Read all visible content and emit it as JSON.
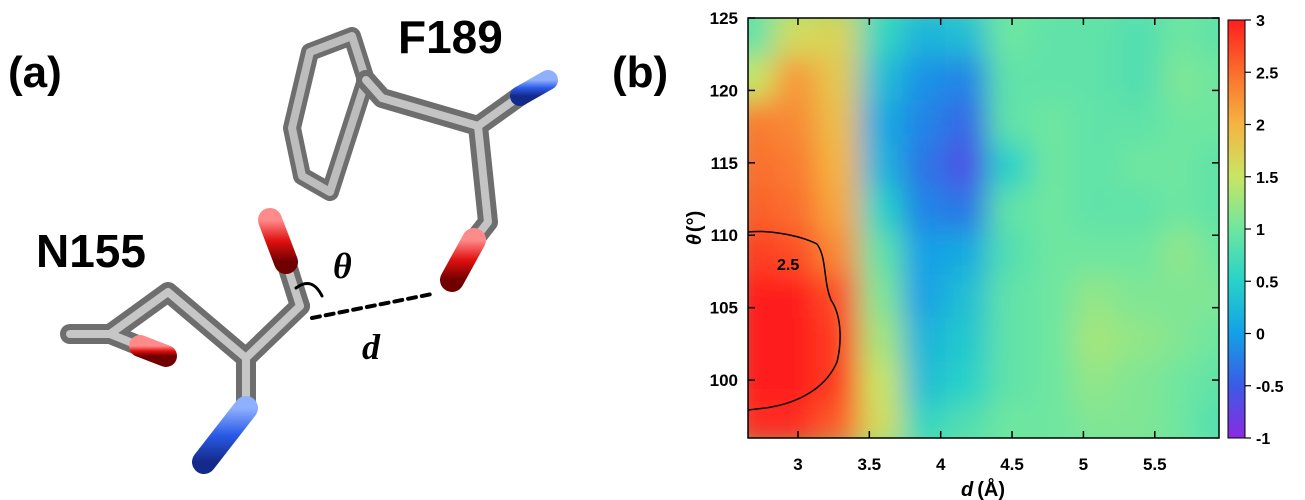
{
  "panel_a": {
    "label": "(a)",
    "residue_top": "F189",
    "residue_left": "N155",
    "angle_symbol": "θ",
    "distance_symbol": "d"
  },
  "panel_b": {
    "label": "(b)"
  },
  "chart_data": {
    "type": "heatmap",
    "xlabel_symbol": "d",
    "xlabel_unit": "(Å)",
    "ylabel_symbol": "θ",
    "ylabel_unit": "(°)",
    "xlim": [
      2.65,
      5.95
    ],
    "ylim": [
      96,
      125
    ],
    "x_ticks": [
      3,
      3.5,
      4,
      4.5,
      5,
      5.5
    ],
    "x_tick_labels": [
      "3",
      "3.5",
      "4",
      "4.5",
      "5",
      "5.5"
    ],
    "y_ticks": [
      100,
      105,
      110,
      115,
      120,
      125
    ],
    "y_tick_labels": [
      "100",
      "105",
      "110",
      "115",
      "120",
      "125"
    ],
    "colorbar": {
      "range": [
        -1,
        3
      ],
      "ticks": [
        -1,
        -0.5,
        0,
        0.5,
        1,
        1.5,
        2,
        2.5,
        3
      ],
      "tick_labels": [
        "-1",
        "-0.5",
        "0",
        "0.5",
        "1",
        "1.5",
        "2",
        "2.5",
        "3"
      ],
      "colors": [
        "#8a2be2",
        "#3c5ae6",
        "#14a0e6",
        "#28d2c8",
        "#6ee6a0",
        "#c8e664",
        "#f5b441",
        "#fa6e2d",
        "#ff1e1e"
      ]
    },
    "contour": {
      "level": 2.5,
      "label": "2.5"
    },
    "value_grid": {
      "x": [
        2.7,
        3.0,
        3.3,
        3.6,
        3.9,
        4.2,
        4.5,
        4.8,
        5.1,
        5.4,
        5.7,
        5.95
      ],
      "y": [
        97,
        100,
        103,
        106,
        109,
        112,
        115,
        118,
        121,
        124
      ],
      "z": [
        [
          2.9,
          2.9,
          2.6,
          1.6,
          0.6,
          0.8,
          1.0,
          1.0,
          1.1,
          1.1,
          1.0,
          0.8
        ],
        [
          3.0,
          3.0,
          2.8,
          1.5,
          0.3,
          0.5,
          0.9,
          1.0,
          1.2,
          1.1,
          1.0,
          0.9
        ],
        [
          3.0,
          3.0,
          2.8,
          1.3,
          0.2,
          0.4,
          0.9,
          1.0,
          1.3,
          1.2,
          1.1,
          1.0
        ],
        [
          3.0,
          3.0,
          2.7,
          1.1,
          0.0,
          0.3,
          0.9,
          1.0,
          1.2,
          1.1,
          1.1,
          1.1
        ],
        [
          2.8,
          2.7,
          2.3,
          0.9,
          0.0,
          0.1,
          0.8,
          1.0,
          1.0,
          1.0,
          1.2,
          1.0
        ],
        [
          2.6,
          2.5,
          2.1,
          0.5,
          -0.2,
          -0.3,
          0.9,
          1.0,
          0.9,
          0.9,
          1.0,
          0.9
        ],
        [
          2.5,
          2.4,
          2.0,
          0.2,
          -0.3,
          -0.6,
          0.5,
          1.0,
          0.9,
          1.0,
          1.0,
          0.9
        ],
        [
          2.4,
          2.3,
          1.9,
          0.1,
          -0.2,
          -0.4,
          0.9,
          1.0,
          0.9,
          0.9,
          1.0,
          1.0
        ],
        [
          1.5,
          2.2,
          1.8,
          0.3,
          -0.1,
          -0.2,
          0.9,
          0.9,
          0.9,
          0.8,
          1.1,
          1.0
        ],
        [
          0.9,
          1.6,
          1.7,
          0.6,
          0.2,
          0.3,
          1.0,
          0.9,
          0.9,
          0.8,
          1.0,
          0.9
        ]
      ]
    }
  }
}
